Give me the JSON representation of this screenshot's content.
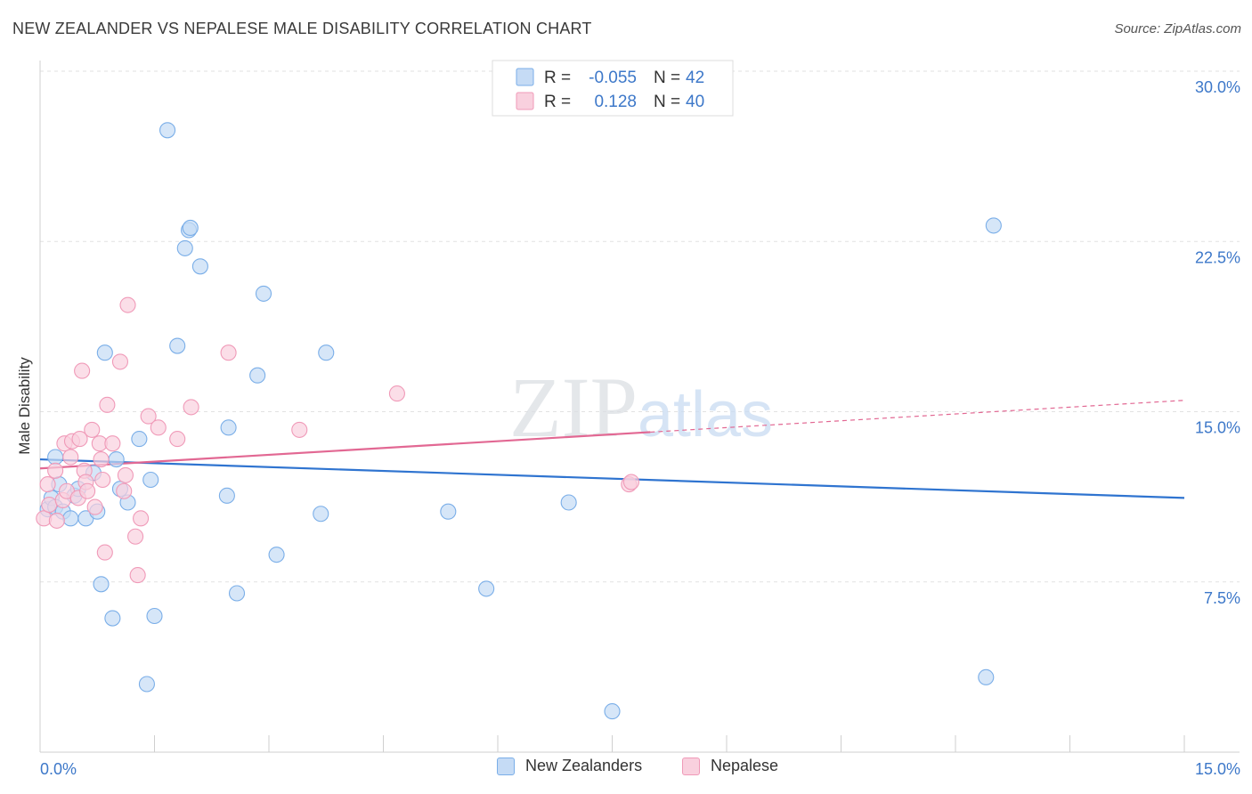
{
  "chart_data": {
    "type": "scatter",
    "title": "NEW ZEALANDER VS NEPALESE MALE DISABILITY CORRELATION CHART",
    "source": "Source: ZipAtlas.com",
    "xlabel": "",
    "ylabel": "Male Disability",
    "xlim": [
      0,
      15
    ],
    "ylim": [
      0,
      30
    ],
    "x_tick_labels": [
      "0.0%",
      "15.0%"
    ],
    "y_ticks": [
      7.5,
      15.0,
      22.5,
      30.0
    ],
    "y_tick_labels": [
      "7.5%",
      "15.0%",
      "22.5%",
      "30.0%"
    ],
    "grid": true,
    "watermark": "ZIPatlas",
    "legend_position": "top-center",
    "series": [
      {
        "name": "New Zealanders",
        "color": "#7aaee8",
        "fill": "#c5dbf5",
        "line_color": "#2f74d0",
        "R": "-0.055",
        "N": "42",
        "trend": {
          "x0": 0,
          "y0": 12.9,
          "x1": 15,
          "y1": 11.2
        },
        "points": [
          [
            0.1,
            10.7
          ],
          [
            0.15,
            11.2
          ],
          [
            0.2,
            10.8
          ],
          [
            0.2,
            13.0
          ],
          [
            0.25,
            11.8
          ],
          [
            0.3,
            10.6
          ],
          [
            0.4,
            10.3
          ],
          [
            0.45,
            11.3
          ],
          [
            0.5,
            11.6
          ],
          [
            0.6,
            10.3
          ],
          [
            0.7,
            12.3
          ],
          [
            0.75,
            10.6
          ],
          [
            0.8,
            7.4
          ],
          [
            0.85,
            17.6
          ],
          [
            0.95,
            5.9
          ],
          [
            1.0,
            12.9
          ],
          [
            1.05,
            11.6
          ],
          [
            1.15,
            11.0
          ],
          [
            1.3,
            13.8
          ],
          [
            1.4,
            3.0
          ],
          [
            1.45,
            12.0
          ],
          [
            1.5,
            6.0
          ],
          [
            1.67,
            27.4
          ],
          [
            1.8,
            17.9
          ],
          [
            1.9,
            22.2
          ],
          [
            1.95,
            23.0
          ],
          [
            1.97,
            23.1
          ],
          [
            2.1,
            21.4
          ],
          [
            2.45,
            11.3
          ],
          [
            2.47,
            14.3
          ],
          [
            2.58,
            7.0
          ],
          [
            2.85,
            16.6
          ],
          [
            2.93,
            20.2
          ],
          [
            3.1,
            8.7
          ],
          [
            3.68,
            10.5
          ],
          [
            3.75,
            17.6
          ],
          [
            5.35,
            10.6
          ],
          [
            5.85,
            7.2
          ],
          [
            6.93,
            11.0
          ],
          [
            7.5,
            1.8
          ],
          [
            12.4,
            3.3
          ],
          [
            12.5,
            23.2
          ]
        ]
      },
      {
        "name": "Nepalese",
        "color": "#f09ab8",
        "fill": "#f9d0de",
        "line_color": "#e26893",
        "R": "0.128",
        "N": "40",
        "trend": {
          "x0": 0,
          "y0": 12.5,
          "x1": 8.0,
          "y1": 14.1,
          "dashed_to_x": 15,
          "dashed_to_y": 15.5
        },
        "points": [
          [
            0.05,
            10.3
          ],
          [
            0.1,
            11.8
          ],
          [
            0.12,
            10.9
          ],
          [
            0.2,
            12.4
          ],
          [
            0.22,
            10.2
          ],
          [
            0.3,
            11.1
          ],
          [
            0.32,
            13.6
          ],
          [
            0.35,
            11.5
          ],
          [
            0.4,
            13.0
          ],
          [
            0.42,
            13.7
          ],
          [
            0.5,
            11.2
          ],
          [
            0.52,
            13.8
          ],
          [
            0.55,
            16.8
          ],
          [
            0.58,
            12.4
          ],
          [
            0.6,
            11.9
          ],
          [
            0.62,
            11.5
          ],
          [
            0.68,
            14.2
          ],
          [
            0.72,
            10.8
          ],
          [
            0.78,
            13.6
          ],
          [
            0.8,
            12.9
          ],
          [
            0.82,
            12.0
          ],
          [
            0.85,
            8.8
          ],
          [
            0.88,
            15.3
          ],
          [
            0.95,
            13.6
          ],
          [
            1.05,
            17.2
          ],
          [
            1.1,
            11.5
          ],
          [
            1.12,
            12.2
          ],
          [
            1.15,
            19.7
          ],
          [
            1.25,
            9.5
          ],
          [
            1.28,
            7.8
          ],
          [
            1.32,
            10.3
          ],
          [
            1.42,
            14.8
          ],
          [
            1.55,
            14.3
          ],
          [
            1.8,
            13.8
          ],
          [
            1.98,
            15.2
          ],
          [
            2.47,
            17.6
          ],
          [
            3.4,
            14.2
          ],
          [
            4.68,
            15.8
          ],
          [
            7.72,
            11.8
          ],
          [
            7.75,
            11.9
          ]
        ]
      }
    ]
  }
}
